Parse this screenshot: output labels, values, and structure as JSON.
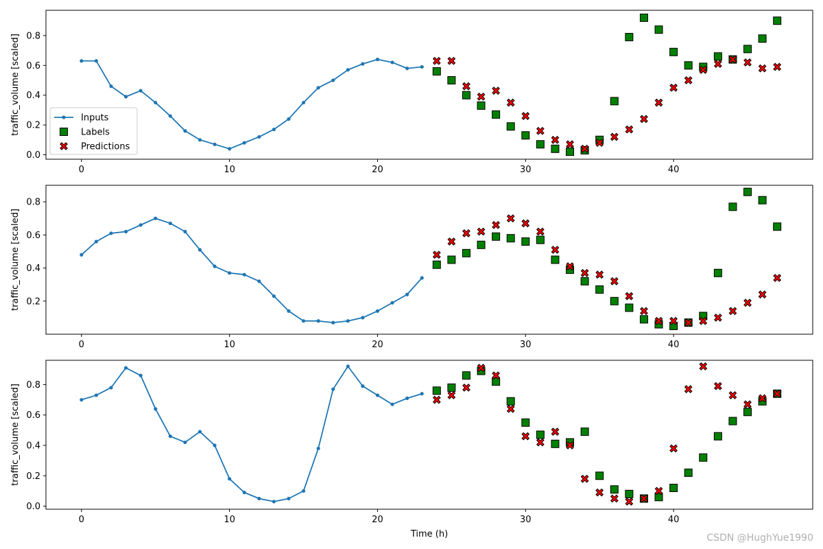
{
  "chart_data": [
    {
      "type": "line",
      "xlabel": "",
      "ylabel": "traffic_volume [scaled]",
      "xlim": [
        -2.4,
        49.4
      ],
      "ylim": [
        -0.03,
        0.97
      ],
      "xticks": [
        0,
        10,
        20,
        30,
        40
      ],
      "yticks": [
        0.0,
        0.2,
        0.4,
        0.6,
        0.8
      ],
      "legend": {
        "placement": "lower-left",
        "entries": [
          "Inputs",
          "Labels",
          "Predictions"
        ]
      },
      "series": [
        {
          "name": "Inputs",
          "x": [
            0,
            1,
            2,
            3,
            4,
            5,
            6,
            7,
            8,
            9,
            10,
            11,
            12,
            13,
            14,
            15,
            16,
            17,
            18,
            19,
            20,
            21,
            22,
            23
          ],
          "values": [
            0.63,
            0.63,
            0.46,
            0.39,
            0.43,
            0.35,
            0.26,
            0.16,
            0.1,
            0.07,
            0.04,
            0.08,
            0.12,
            0.17,
            0.24,
            0.35,
            0.45,
            0.5,
            0.57,
            0.61,
            0.64,
            0.62,
            0.58,
            0.59
          ]
        },
        {
          "name": "Labels",
          "x": [
            24,
            25,
            26,
            27,
            28,
            29,
            30,
            31,
            32,
            33,
            34,
            35,
            36,
            37,
            38,
            39,
            40,
            41,
            42,
            43,
            44,
            45,
            46,
            47
          ],
          "values": [
            0.56,
            0.5,
            0.4,
            0.33,
            0.27,
            0.19,
            0.13,
            0.07,
            0.04,
            0.02,
            0.03,
            0.1,
            0.36,
            0.79,
            0.92,
            0.84,
            0.69,
            0.6,
            0.59,
            0.66,
            0.64,
            0.71,
            0.78,
            0.9
          ]
        },
        {
          "name": "Predictions",
          "x": [
            24,
            25,
            26,
            27,
            28,
            29,
            30,
            31,
            32,
            33,
            34,
            35,
            36,
            37,
            38,
            39,
            40,
            41,
            42,
            43,
            44,
            45,
            46,
            47
          ],
          "values": [
            0.63,
            0.63,
            0.46,
            0.39,
            0.43,
            0.35,
            0.26,
            0.16,
            0.1,
            0.07,
            0.04,
            0.08,
            0.12,
            0.17,
            0.24,
            0.35,
            0.45,
            0.5,
            0.57,
            0.61,
            0.64,
            0.62,
            0.58,
            0.59
          ]
        }
      ]
    },
    {
      "type": "line",
      "xlabel": "",
      "ylabel": "traffic_volume [scaled]",
      "xlim": [
        -2.4,
        49.4
      ],
      "ylim": [
        0.0,
        0.9
      ],
      "xticks": [
        0,
        10,
        20,
        30,
        40
      ],
      "yticks": [
        0.2,
        0.4,
        0.6,
        0.8
      ],
      "series": [
        {
          "name": "Inputs",
          "x": [
            0,
            1,
            2,
            3,
            4,
            5,
            6,
            7,
            8,
            9,
            10,
            11,
            12,
            13,
            14,
            15,
            16,
            17,
            18,
            19,
            20,
            21,
            22,
            23
          ],
          "values": [
            0.48,
            0.56,
            0.61,
            0.62,
            0.66,
            0.7,
            0.67,
            0.62,
            0.51,
            0.41,
            0.37,
            0.36,
            0.32,
            0.23,
            0.14,
            0.08,
            0.08,
            0.07,
            0.08,
            0.1,
            0.14,
            0.19,
            0.24,
            0.34
          ]
        },
        {
          "name": "Labels",
          "x": [
            24,
            25,
            26,
            27,
            28,
            29,
            30,
            31,
            32,
            33,
            34,
            35,
            36,
            37,
            38,
            39,
            40,
            41,
            42,
            43,
            44,
            45,
            46,
            47
          ],
          "values": [
            0.42,
            0.45,
            0.49,
            0.54,
            0.59,
            0.58,
            0.56,
            0.57,
            0.45,
            0.39,
            0.32,
            0.27,
            0.2,
            0.16,
            0.09,
            0.06,
            0.05,
            0.07,
            0.11,
            0.37,
            0.77,
            0.86,
            0.81,
            0.65
          ]
        },
        {
          "name": "Predictions",
          "x": [
            24,
            25,
            26,
            27,
            28,
            29,
            30,
            31,
            32,
            33,
            34,
            35,
            36,
            37,
            38,
            39,
            40,
            41,
            42,
            43,
            44,
            45,
            46,
            47
          ],
          "values": [
            0.48,
            0.56,
            0.61,
            0.62,
            0.66,
            0.7,
            0.67,
            0.62,
            0.51,
            0.41,
            0.37,
            0.36,
            0.32,
            0.23,
            0.14,
            0.08,
            0.08,
            0.07,
            0.08,
            0.1,
            0.14,
            0.19,
            0.24,
            0.34
          ]
        }
      ]
    },
    {
      "type": "line",
      "xlabel": "Time (h)",
      "ylabel": "traffic_volume [scaled]",
      "xlim": [
        -2.4,
        49.4
      ],
      "ylim": [
        -0.02,
        0.96
      ],
      "xticks": [
        0,
        10,
        20,
        30,
        40
      ],
      "yticks": [
        0.0,
        0.2,
        0.4,
        0.6,
        0.8
      ],
      "series": [
        {
          "name": "Inputs",
          "x": [
            0,
            1,
            2,
            3,
            4,
            5,
            6,
            7,
            8,
            9,
            10,
            11,
            12,
            13,
            14,
            15,
            16,
            17,
            18,
            19,
            20,
            21,
            22,
            23
          ],
          "values": [
            0.7,
            0.73,
            0.78,
            0.91,
            0.86,
            0.64,
            0.46,
            0.42,
            0.49,
            0.4,
            0.18,
            0.09,
            0.05,
            0.03,
            0.05,
            0.1,
            0.38,
            0.77,
            0.92,
            0.79,
            0.73,
            0.67,
            0.71,
            0.74
          ]
        },
        {
          "name": "Labels",
          "x": [
            24,
            25,
            26,
            27,
            28,
            29,
            30,
            31,
            32,
            33,
            34,
            35,
            36,
            37,
            38,
            39,
            40,
            41,
            42,
            43,
            44,
            45,
            46,
            47
          ],
          "values": [
            0.76,
            0.78,
            0.86,
            0.89,
            0.82,
            0.69,
            0.55,
            0.47,
            0.41,
            0.42,
            0.49,
            0.2,
            0.11,
            0.08,
            0.05,
            0.06,
            0.12,
            0.22,
            0.32,
            0.46,
            0.56,
            0.62,
            0.69,
            0.74
          ]
        },
        {
          "name": "Predictions",
          "x": [
            24,
            25,
            26,
            27,
            28,
            29,
            30,
            31,
            32,
            33,
            34,
            35,
            36,
            37,
            38,
            39,
            40,
            41,
            42,
            43,
            44,
            45,
            46,
            47
          ],
          "values": [
            0.7,
            0.73,
            0.78,
            0.91,
            0.86,
            0.64,
            0.46,
            0.42,
            0.49,
            0.4,
            0.18,
            0.09,
            0.05,
            0.03,
            0.05,
            0.1,
            0.38,
            0.77,
            0.92,
            0.79,
            0.73,
            0.67,
            0.71,
            0.74
          ]
        }
      ]
    }
  ],
  "colors": {
    "inputs": "#1f77b4",
    "labels": "#008000",
    "predictions": "#ff0000",
    "marker_edge": "#000000"
  },
  "watermark": "CSDN @HughYue1990"
}
